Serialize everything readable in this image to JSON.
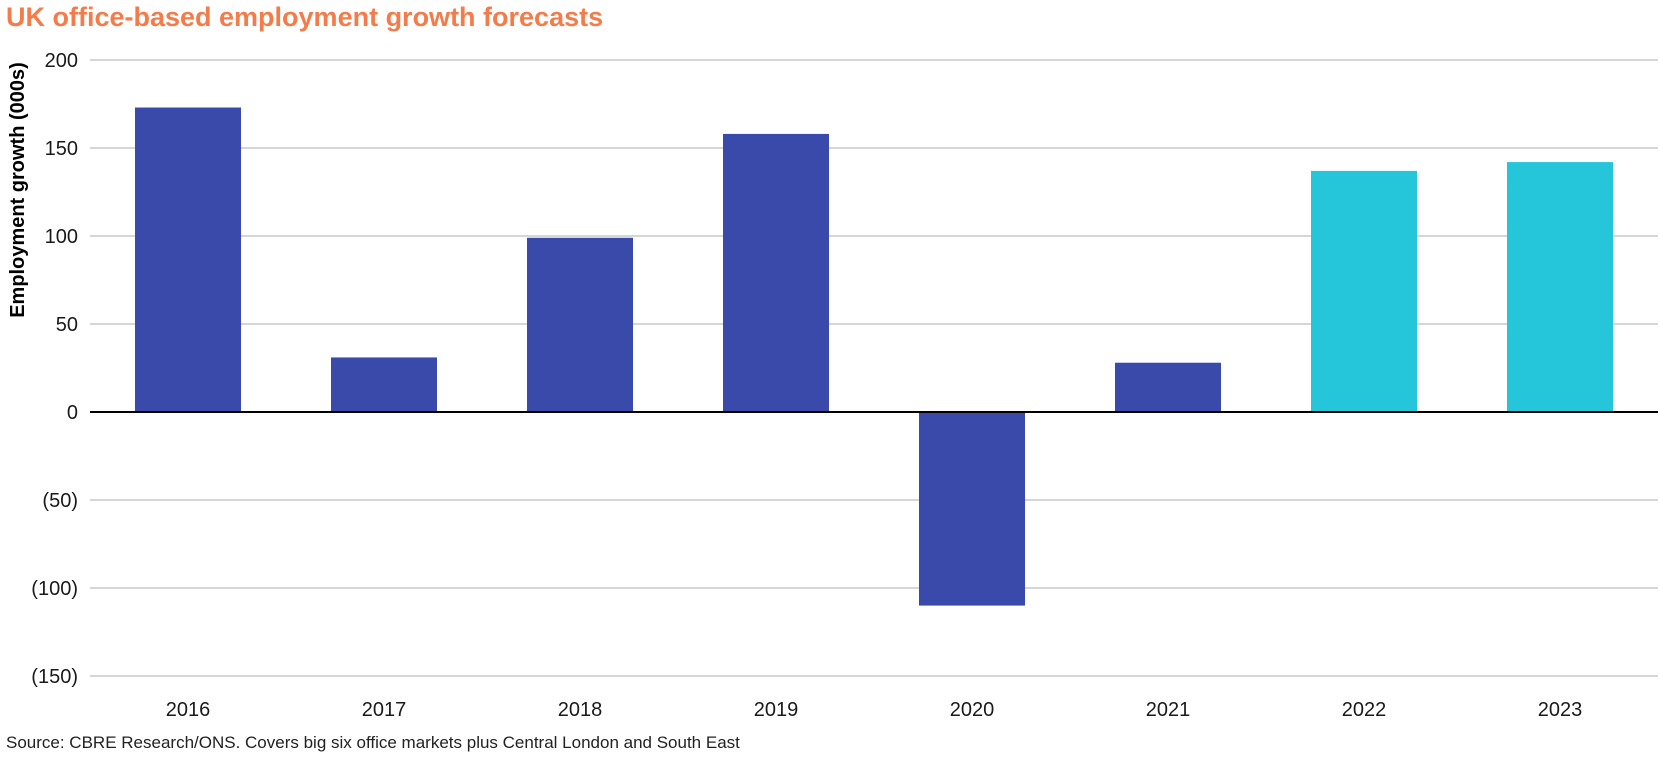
{
  "title": "UK office-based employment growth forecasts",
  "source": "Source: CBRE Research/ONS. Covers big six office markets plus Central London and South East",
  "colors": {
    "title": "#F47B4A",
    "actual": "#3A4AAA",
    "forecast": "#26C6DA",
    "grid": "#c8c8c8",
    "zero_line": "#000000"
  },
  "chart_data": {
    "type": "bar",
    "title": "UK office-based employment growth forecasts",
    "xlabel": "",
    "ylabel": "Employment growth (000s)",
    "ylim": [
      -150,
      200
    ],
    "yticks": [
      200,
      150,
      100,
      50,
      0,
      -50,
      -100,
      -150
    ],
    "ytick_labels": [
      "200",
      "150",
      "100",
      "50",
      "0",
      "(50)",
      "(100)",
      "(150)"
    ],
    "categories": [
      "2016",
      "2017",
      "2018",
      "2019",
      "2020",
      "2021",
      "2022",
      "2023"
    ],
    "values": [
      173,
      31,
      99,
      158,
      -110,
      28,
      137,
      142
    ],
    "bar_colors": [
      "#3A4AAA",
      "#3A4AAA",
      "#3A4AAA",
      "#3A4AAA",
      "#3A4AAA",
      "#3A4AAA",
      "#26C6DA",
      "#26C6DA"
    ],
    "grid": true,
    "legend": "none"
  }
}
